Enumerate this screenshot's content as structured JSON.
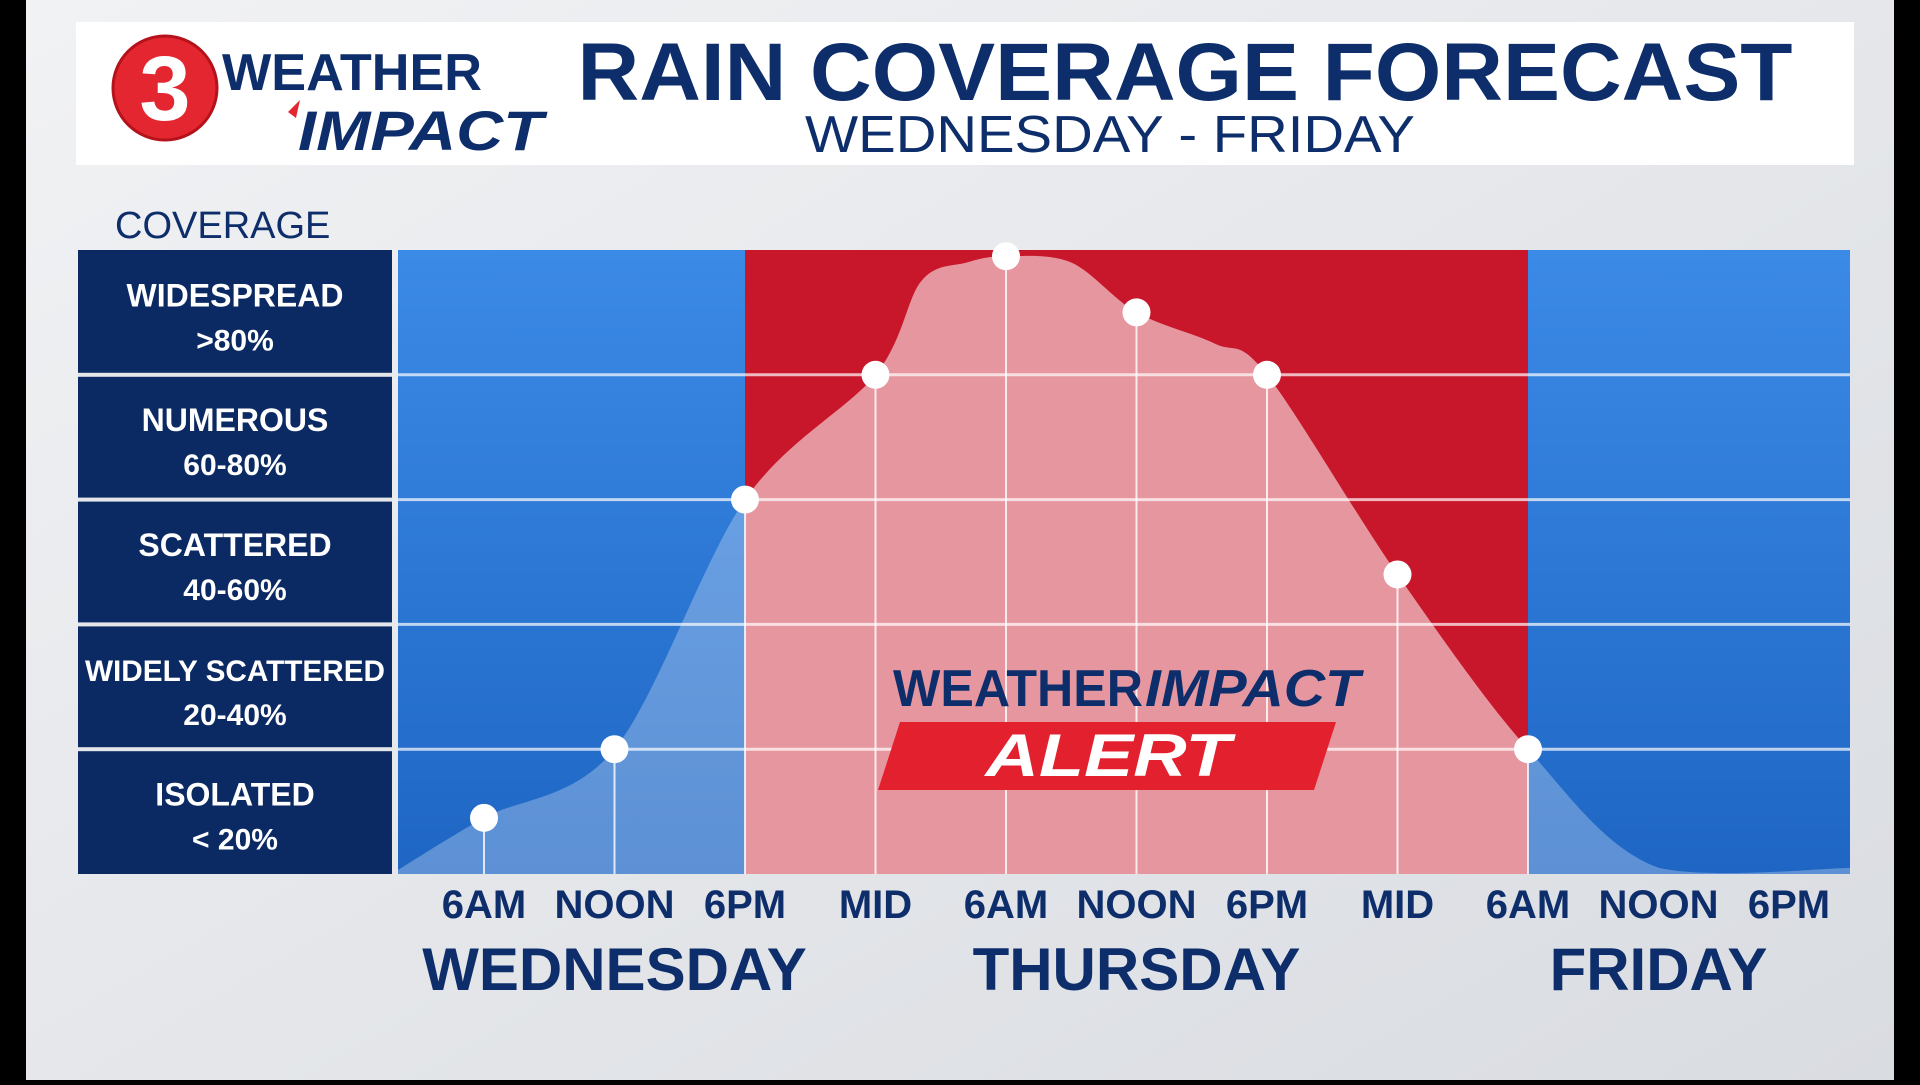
{
  "header": {
    "logo_number": "3",
    "logo_line1": "WEATHER",
    "logo_line2": "IMPACT",
    "title": "RAIN COVERAGE FORECAST",
    "subtitle": "WEDNESDAY - FRIDAY"
  },
  "alert_badge": {
    "line1_a": "WEATHER",
    "line1_b": "IMPACT",
    "line2": "ALERT"
  },
  "colors": {
    "navy": "#0b2a63",
    "title_blue": "#0d2e6b",
    "chart_blue": "#2a79d6",
    "alert_red": "#c8162a",
    "logo_red": "#e3262f",
    "background_gray": "#e4e6ea"
  },
  "chart_data": {
    "type": "area",
    "ylabel": "COVERAGE",
    "y_categories": [
      {
        "name": "WIDESPREAD",
        "range": ">80%"
      },
      {
        "name": "NUMEROUS",
        "range": "60-80%"
      },
      {
        "name": "SCATTERED",
        "range": "40-60%"
      },
      {
        "name": "WIDELY SCATTERED",
        "range": "20-40%"
      },
      {
        "name": "ISOLATED",
        "range": "< 20%"
      }
    ],
    "ylim": [
      0,
      100
    ],
    "x_ticks": [
      "6AM",
      "NOON",
      "6PM",
      "MID",
      "6AM",
      "NOON",
      "6PM",
      "MID",
      "6AM",
      "NOON",
      "6PM"
    ],
    "days": [
      {
        "label": "WEDNESDAY",
        "tick_start": 0,
        "tick_end": 2
      },
      {
        "label": "THURSDAY",
        "tick_start": 4,
        "tick_end": 6
      },
      {
        "label": "FRIDAY",
        "tick_start": 8,
        "tick_end": 10
      }
    ],
    "alert_window": {
      "start_tick": 2,
      "end_tick": 8
    },
    "markers": [
      {
        "tick": 0,
        "value": 9
      },
      {
        "tick": 1,
        "value": 20
      },
      {
        "tick": 2,
        "value": 60
      },
      {
        "tick": 3,
        "value": 80
      },
      {
        "tick": 4,
        "value": 99
      },
      {
        "tick": 5,
        "value": 90
      },
      {
        "tick": 6,
        "value": 80
      },
      {
        "tick": 7,
        "value": 48
      },
      {
        "tick": 8,
        "value": 20
      }
    ],
    "curve": [
      {
        "t": -0.67,
        "v": 0.5
      },
      {
        "t": 0,
        "v": 9
      },
      {
        "t": 1,
        "v": 20
      },
      {
        "t": 2,
        "v": 60
      },
      {
        "t": 3,
        "v": 80
      },
      {
        "t": 3.35,
        "v": 95
      },
      {
        "t": 3.7,
        "v": 98
      },
      {
        "t": 4,
        "v": 99
      },
      {
        "t": 4.5,
        "v": 98
      },
      {
        "t": 5,
        "v": 90
      },
      {
        "t": 5.6,
        "v": 85
      },
      {
        "t": 6,
        "v": 80
      },
      {
        "t": 7,
        "v": 48
      },
      {
        "t": 8,
        "v": 20
      },
      {
        "t": 9,
        "v": 1
      },
      {
        "t": 10.5,
        "v": 1
      }
    ]
  }
}
